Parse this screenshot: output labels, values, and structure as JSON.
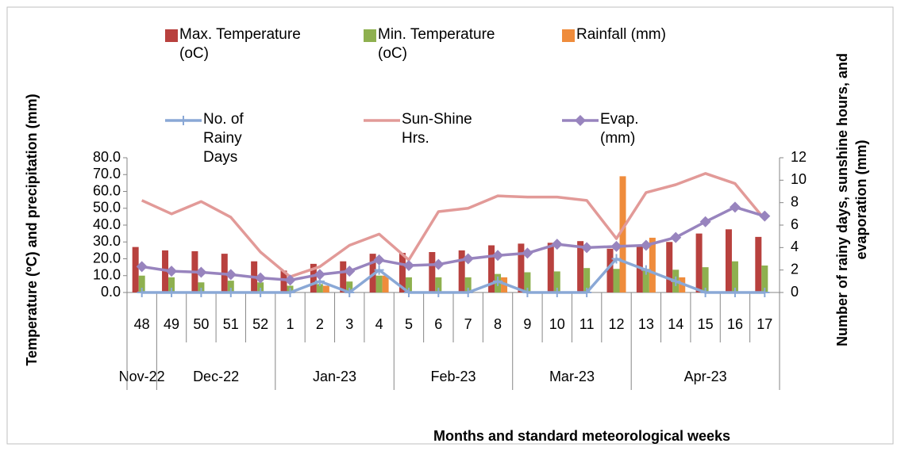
{
  "chart_data": {
    "type": "combo",
    "y_label": "Temperature (ºC) and precipitation (mm)",
    "y2_label": "Number of rainy days, sunshine hours,  and evaporation (mm)",
    "x_label": "Months and standard meteorological weeks",
    "groups": [
      {
        "name": "Nov-22",
        "categories": [
          "48"
        ]
      },
      {
        "name": "Dec-22",
        "categories": [
          "49",
          "50",
          "51",
          "52"
        ]
      },
      {
        "name": "Jan-23",
        "categories": [
          "1",
          "2",
          "3",
          "4"
        ]
      },
      {
        "name": "Feb-23",
        "categories": [
          "5",
          "6",
          "7",
          "8"
        ]
      },
      {
        "name": "Mar-23",
        "categories": [
          "9",
          "10",
          "11",
          "12"
        ]
      },
      {
        "name": "Apr-23",
        "categories": [
          "13",
          "14",
          "15",
          "16",
          "17"
        ]
      }
    ],
    "series": [
      {
        "name": "Max. Temperature (oC)",
        "type": "bar",
        "color": "#b8413e",
        "values": [
          27,
          25,
          24.5,
          23,
          18.5,
          13,
          17,
          18.5,
          23,
          23.5,
          24,
          25,
          28,
          29,
          29.5,
          30.5,
          26,
          28,
          30,
          35,
          37.5,
          33
        ]
      },
      {
        "name": "Min. Temperature (oC)",
        "type": "bar",
        "color": "#8eb04f",
        "values": [
          10,
          9,
          6,
          7,
          6,
          4,
          5,
          6.5,
          10,
          9,
          9,
          9,
          11,
          12,
          12.5,
          14.5,
          14,
          14,
          13.5,
          15,
          18.5,
          16
        ]
      },
      {
        "name": "Rainfall (mm)",
        "type": "bar",
        "color": "#ef8c3c",
        "values": [
          0,
          0,
          0,
          0,
          0,
          0,
          4,
          0,
          10,
          0,
          0,
          0,
          9,
          0,
          0,
          0,
          69,
          32.5,
          9,
          0,
          0,
          0
        ]
      },
      {
        "name": "No. of Rainy Days",
        "type": "line",
        "axis": "y2",
        "color": "#8aa8d6",
        "marker": "plus",
        "values": [
          0,
          0,
          0,
          0,
          0,
          0,
          1,
          0,
          2,
          0,
          0,
          0,
          1,
          0,
          0,
          0,
          3,
          2,
          1,
          0,
          0,
          0
        ]
      },
      {
        "name": "Sun-Shine Hrs.",
        "type": "line",
        "axis": "y2",
        "color": "#e29a98",
        "marker": null,
        "values": [
          8.2,
          7,
          8.1,
          6.7,
          3.6,
          1.4,
          2.3,
          4.2,
          5.2,
          2.9,
          7.2,
          7.5,
          8.6,
          8.5,
          8.5,
          8.2,
          4.8,
          8.9,
          9.6,
          10.6,
          9.7,
          6.5
        ]
      },
      {
        "name": "Evap. (mm)",
        "type": "line",
        "axis": "y2",
        "color": "#9884be",
        "marker": "diamond",
        "values": [
          2.3,
          1.9,
          1.8,
          1.6,
          1.3,
          1.1,
          1.6,
          1.9,
          2.9,
          2.4,
          2.5,
          3.0,
          3.3,
          3.5,
          4.3,
          4.0,
          4.1,
          4.2,
          4.9,
          6.3,
          7.6,
          6.8
        ]
      }
    ],
    "ylim": [
      0,
      80
    ],
    "yticks": [
      {
        "value": 0,
        "label": "0.0"
      },
      {
        "value": 10,
        "label": "10.0"
      },
      {
        "value": 20,
        "label": "20.0"
      },
      {
        "value": 30,
        "label": "30.0"
      },
      {
        "value": 40,
        "label": "40.0"
      },
      {
        "value": 50,
        "label": "50.0"
      },
      {
        "value": 60,
        "label": "60.0"
      },
      {
        "value": 70,
        "label": "70.0"
      },
      {
        "value": 80,
        "label": "80.0"
      }
    ],
    "y2lim": [
      0,
      12
    ],
    "y2ticks": [
      0,
      2,
      4,
      6,
      8,
      10,
      12
    ],
    "grid": false
  }
}
